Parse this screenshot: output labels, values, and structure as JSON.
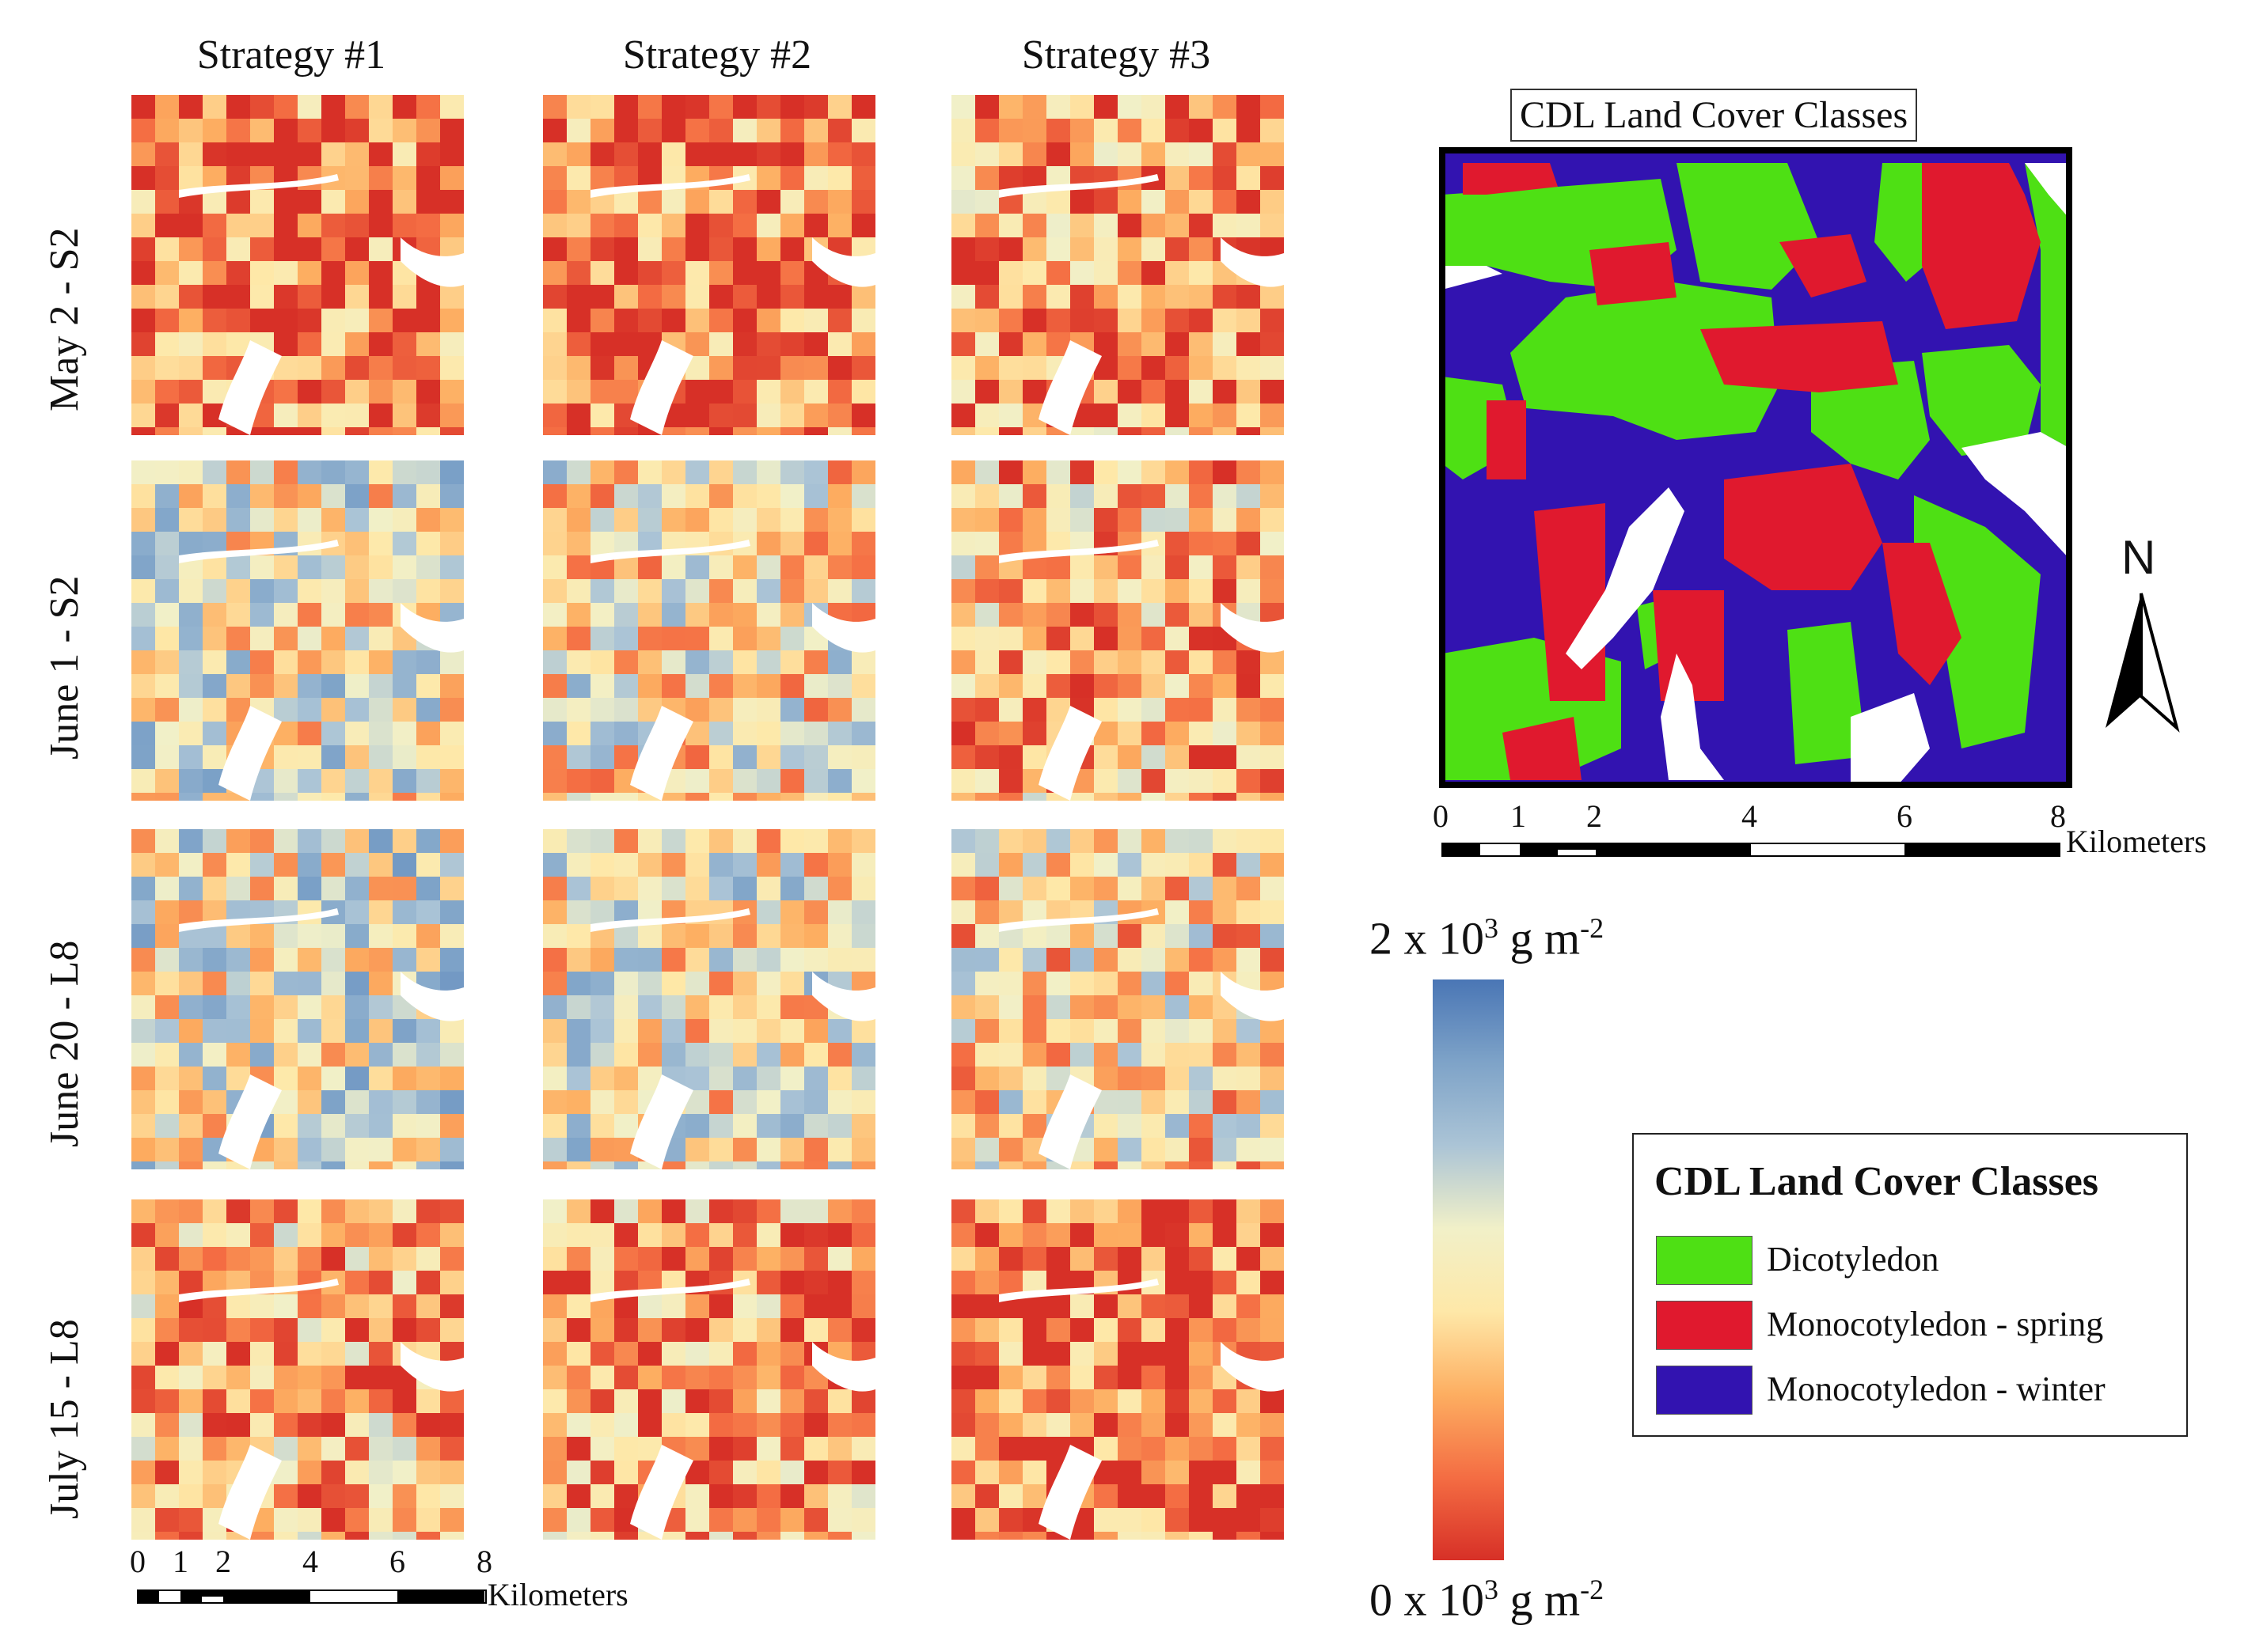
{
  "columns": [
    {
      "label": "Strategy #1"
    },
    {
      "label": "Strategy #2"
    },
    {
      "label": "Strategy #3"
    }
  ],
  "rows": [
    {
      "label": "May 2 - S2"
    },
    {
      "label": "June 1 - S2"
    },
    {
      "label": "June 20 - L8"
    },
    {
      "label": "July 15 - L8"
    }
  ],
  "panel_tone": [
    [
      0.18,
      0.18,
      0.25
    ],
    [
      0.52,
      0.47,
      0.32
    ],
    [
      0.54,
      0.5,
      0.42
    ],
    [
      0.3,
      0.26,
      0.16
    ]
  ],
  "cdl_map": {
    "title": "CDL Land Cover Classes",
    "north_label": "N"
  },
  "scale_bar": {
    "ticks": [
      "0",
      "1",
      "2",
      "4",
      "6",
      "8"
    ],
    "unit": "Kilometers"
  },
  "colorbar": {
    "max": {
      "prefix": "2 x 10",
      "exp": "3",
      "suffix": " g m",
      "unit_exp": "-2"
    },
    "min": {
      "prefix": "0 x 10",
      "exp": "3",
      "suffix": " g m",
      "unit_exp": "-2"
    },
    "colors": [
      "#d73027",
      "#f46d43",
      "#fdae61",
      "#fee8a8",
      "#f1f0c8",
      "#abc4d6",
      "#7ea3c8",
      "#4a76b5"
    ]
  },
  "legend": {
    "title": "CDL Land Cover Classes",
    "items": [
      {
        "label": "Dicotyledon",
        "color": "#4ee014"
      },
      {
        "label": "Monocotyledon - spring",
        "color": "#e0192e"
      },
      {
        "label": "Monocotyledon - winter",
        "color": "#3213b0"
      }
    ]
  }
}
